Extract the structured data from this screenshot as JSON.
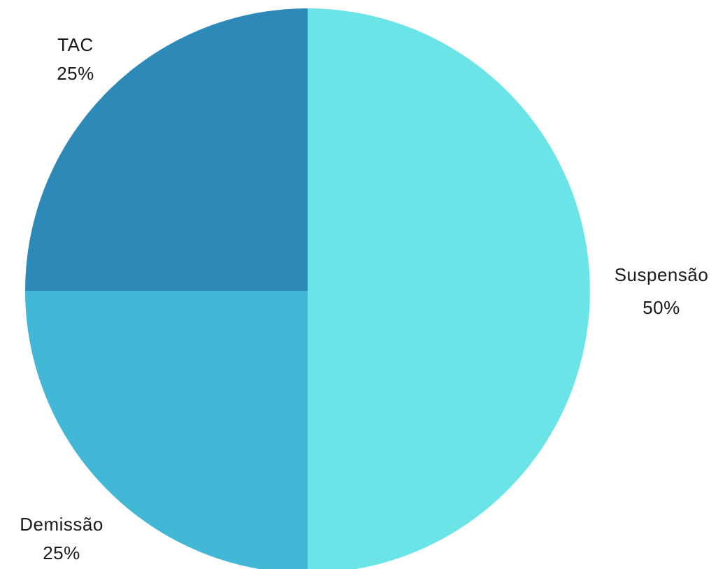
{
  "chart_data": {
    "type": "pie",
    "title": "",
    "slices": [
      {
        "label": "Suspensão",
        "value": 50,
        "value_label": "50%",
        "color": "#6be4e8"
      },
      {
        "label": "Demissão",
        "value": 25,
        "value_label": "25%",
        "color": "#43b7d6"
      },
      {
        "label": "TAC",
        "value": 25,
        "value_label": "25%",
        "color": "#2d8ab8"
      }
    ],
    "start_angle": "12 o'clock",
    "direction": "clockwise",
    "legend": "none"
  }
}
